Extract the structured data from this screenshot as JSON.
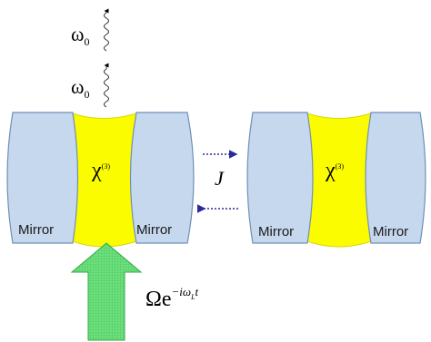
{
  "photons": [
    {
      "label": "ω",
      "sub": "0"
    },
    {
      "label": "ω",
      "sub": "0"
    }
  ],
  "cavities": [
    {
      "medium": "χ",
      "medium_sup": "(3)",
      "left_mirror": "Mirror",
      "right_mirror": "Mirror"
    },
    {
      "medium": "χ",
      "medium_sup": "(3)",
      "left_mirror": "Mirror",
      "right_mirror": "Mirror"
    }
  ],
  "coupling": {
    "label": "J"
  },
  "drive": {
    "base": "Ωe",
    "exponent_main": "−iω",
    "exponent_sub": "L",
    "exponent_tail": "t"
  },
  "colors": {
    "mirror_fill": "#c6d8ee",
    "mirror_stroke": "#6f8fb6",
    "medium_fill": "#fcfc00",
    "drive_fill": "#54d86a",
    "coupling_arrow": "#2a2aa0"
  }
}
